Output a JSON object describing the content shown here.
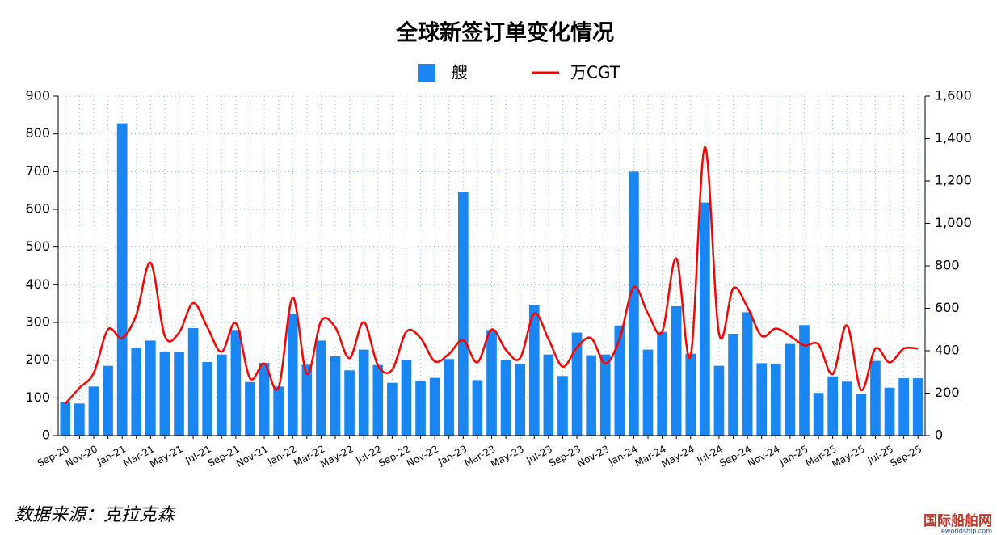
{
  "chart_data": {
    "type": "bar",
    "title": "全球新签订单变化情况",
    "categories": [
      "Sep-20",
      null,
      "Nov-20",
      null,
      "Jan-21",
      null,
      "Mar-21",
      null,
      "May-21",
      null,
      "Jul-21",
      null,
      "Sep-21",
      null,
      "Nov-21",
      null,
      "Jan-22",
      null,
      "Mar-22",
      null,
      "May-22",
      null,
      "Jul-22",
      null,
      "Sep-22",
      null,
      "Nov-22",
      null,
      "Jan-23",
      null,
      "Mar-23",
      null,
      "May-23",
      null,
      "Jul-23",
      null,
      "Sep-23",
      null,
      "Nov-23",
      null,
      "Jan-24",
      null,
      "Mar-24",
      null,
      "May-24",
      null,
      "Jul-24",
      null,
      "Sep-24",
      null,
      "Nov-24",
      null,
      "Jan-25",
      null,
      "Mar-25",
      null,
      "May-25",
      null,
      "Jul-25",
      null,
      "Sep-25"
    ],
    "series": [
      {
        "name": "艘",
        "type": "bar",
        "color": "#1a86f2",
        "values": [
          88,
          85,
          130,
          185,
          828,
          233,
          252,
          223,
          222,
          285,
          195,
          215,
          280,
          142,
          193,
          130,
          323,
          188,
          252,
          210,
          173,
          228,
          187,
          140,
          200,
          145,
          153,
          203,
          645,
          147,
          280,
          200,
          190,
          347,
          215,
          158,
          273,
          213,
          215,
          292,
          700,
          228,
          275,
          343,
          217,
          618,
          185,
          270,
          327,
          192,
          190,
          243,
          293,
          113,
          157,
          143,
          110,
          198,
          127,
          152,
          152
        ]
      },
      {
        "name": "万CGT",
        "type": "line",
        "axis": "y2",
        "color": "#ff0000",
        "values": [
          150,
          225,
          295,
          500,
          460,
          570,
          815,
          470,
          485,
          625,
          510,
          395,
          530,
          270,
          340,
          225,
          650,
          290,
          540,
          510,
          365,
          535,
          330,
          310,
          490,
          460,
          350,
          385,
          450,
          345,
          500,
          405,
          365,
          575,
          455,
          325,
          415,
          460,
          340,
          455,
          700,
          575,
          490,
          835,
          375,
          1360,
          480,
          695,
          605,
          470,
          505,
          470,
          425,
          430,
          290,
          520,
          215,
          410,
          345,
          410,
          410
        ]
      }
    ],
    "ylim": [
      0,
      900
    ],
    "yticks": [
      0,
      100,
      200,
      300,
      400,
      500,
      600,
      700,
      800,
      900
    ],
    "y2lim": [
      0,
      1600
    ],
    "y2ticks": [
      0,
      200,
      400,
      600,
      800,
      {
        "value": 1000,
        "label": "1,000"
      },
      {
        "value": 1200,
        "label": "1,200"
      },
      {
        "value": 1400,
        "label": "1,400"
      },
      {
        "value": 1600,
        "label": "1,600"
      }
    ],
    "grid": true,
    "legend": "top",
    "source": "数据来源：克拉克森",
    "watermark": "国际船舶网",
    "watermark_url": "eworldship.com"
  }
}
